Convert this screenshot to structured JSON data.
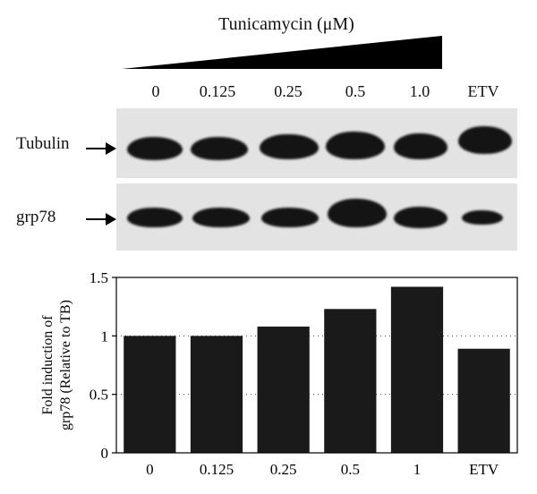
{
  "treatment": {
    "title": "Tunicamycin (μM)"
  },
  "lanes": [
    "0",
    "0.125",
    "0.25",
    "0.5",
    "1.0",
    "ETV"
  ],
  "blots": [
    {
      "label": "Tubulin"
    },
    {
      "label": "grp78"
    }
  ],
  "chart_data": {
    "type": "bar",
    "categories": [
      "0",
      "0.125",
      "0.25",
      "0.5",
      "1",
      "ETV"
    ],
    "values": [
      1.0,
      1.0,
      1.08,
      1.23,
      1.42,
      0.89
    ],
    "ylabel_line1": "Fold induction of",
    "ylabel_line2": "grp78 (Relative to TB)",
    "yticks": [
      "0",
      "0.5",
      "1",
      "1.5"
    ],
    "ylim": [
      0,
      1.5
    ],
    "bar_color": "#1a1a1a",
    "grid": "dotted horizontal at 0.5 and 1"
  }
}
